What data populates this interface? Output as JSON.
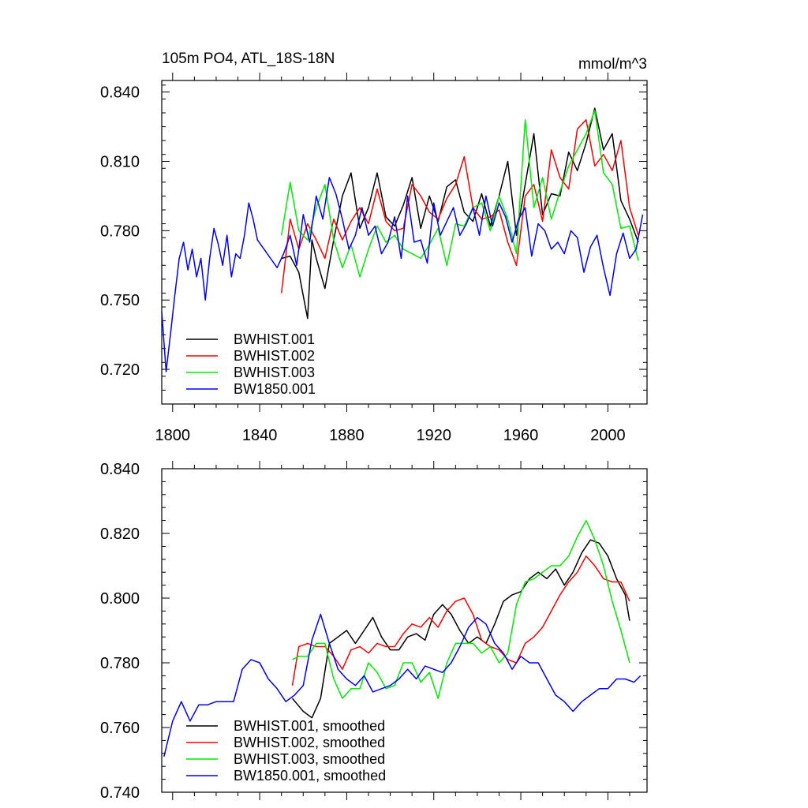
{
  "chart_data": [
    {
      "type": "line",
      "title": "105m PO4, ATL_18S-18N",
      "units": "mmol/m^3",
      "xlabel": "",
      "ylabel": "",
      "xlim": [
        1795,
        2018
      ],
      "ylim": [
        0.705,
        0.845
      ],
      "xticks": [
        1800,
        1840,
        1880,
        1920,
        1960,
        2000
      ],
      "xtick_labels": [
        "1800",
        "1840",
        "1880",
        "1920",
        "1960",
        "2000"
      ],
      "yticks": [
        0.72,
        0.75,
        0.78,
        0.81,
        0.84
      ],
      "ytick_labels": [
        "0.720",
        "0.750",
        "0.780",
        "0.810",
        "0.840"
      ],
      "legend_position": "bottom-left",
      "series": [
        {
          "name": "BWHIST.001",
          "color": "#000000",
          "x": [
            1850,
            1854,
            1858,
            1862,
            1864,
            1866,
            1870,
            1874,
            1878,
            1882,
            1886,
            1890,
            1894,
            1898,
            1902,
            1906,
            1910,
            1914,
            1918,
            1922,
            1926,
            1930,
            1934,
            1938,
            1942,
            1946,
            1950,
            1954,
            1958,
            1962,
            1966,
            1970,
            1974,
            1978,
            1982,
            1986,
            1990,
            1994,
            1998,
            2002,
            2006,
            2010,
            2014
          ],
          "values": [
            0.768,
            0.769,
            0.762,
            0.742,
            0.776,
            0.768,
            0.755,
            0.776,
            0.795,
            0.805,
            0.781,
            0.79,
            0.805,
            0.786,
            0.782,
            0.791,
            0.803,
            0.781,
            0.795,
            0.784,
            0.799,
            0.802,
            0.788,
            0.784,
            0.796,
            0.782,
            0.795,
            0.81,
            0.778,
            0.8,
            0.822,
            0.787,
            0.796,
            0.795,
            0.814,
            0.806,
            0.818,
            0.833,
            0.815,
            0.822,
            0.793,
            0.785,
            0.775
          ]
        },
        {
          "name": "BWHIST.002",
          "color": "#ff0000",
          "x": [
            1850,
            1854,
            1858,
            1862,
            1866,
            1870,
            1874,
            1878,
            1882,
            1886,
            1890,
            1894,
            1898,
            1902,
            1906,
            1910,
            1914,
            1918,
            1922,
            1926,
            1930,
            1934,
            1938,
            1942,
            1946,
            1950,
            1954,
            1958,
            1962,
            1966,
            1970,
            1974,
            1978,
            1982,
            1986,
            1990,
            1994,
            1998,
            2002,
            2006,
            2010,
            2014
          ],
          "values": [
            0.753,
            0.785,
            0.772,
            0.783,
            0.776,
            0.768,
            0.785,
            0.776,
            0.784,
            0.79,
            0.783,
            0.798,
            0.784,
            0.78,
            0.781,
            0.8,
            0.795,
            0.788,
            0.785,
            0.794,
            0.8,
            0.812,
            0.79,
            0.785,
            0.786,
            0.789,
            0.775,
            0.765,
            0.795,
            0.8,
            0.784,
            0.815,
            0.803,
            0.798,
            0.824,
            0.828,
            0.808,
            0.813,
            0.806,
            0.819,
            0.79,
            0.778
          ]
        },
        {
          "name": "BWHIST.003",
          "color": "#00ee00",
          "x": [
            1850,
            1854,
            1858,
            1862,
            1866,
            1870,
            1874,
            1878,
            1882,
            1886,
            1890,
            1894,
            1898,
            1902,
            1906,
            1910,
            1914,
            1918,
            1922,
            1926,
            1930,
            1934,
            1938,
            1942,
            1946,
            1950,
            1954,
            1958,
            1962,
            1966,
            1970,
            1974,
            1978,
            1982,
            1986,
            1990,
            1994,
            1998,
            2002,
            2006,
            2010,
            2014
          ],
          "values": [
            0.778,
            0.801,
            0.78,
            0.776,
            0.79,
            0.8,
            0.776,
            0.764,
            0.774,
            0.76,
            0.772,
            0.782,
            0.775,
            0.778,
            0.772,
            0.77,
            0.768,
            0.774,
            0.781,
            0.765,
            0.783,
            0.782,
            0.79,
            0.792,
            0.78,
            0.795,
            0.785,
            0.77,
            0.828,
            0.79,
            0.803,
            0.785,
            0.797,
            0.808,
            0.815,
            0.822,
            0.832,
            0.805,
            0.8,
            0.781,
            0.782,
            0.767
          ]
        },
        {
          "name": "BW1850.001",
          "color": "#0000ff",
          "x": [
            1795,
            1797,
            1799,
            1801,
            1803,
            1805,
            1807,
            1809,
            1811,
            1813,
            1815,
            1817,
            1819,
            1821,
            1823,
            1825,
            1827,
            1829,
            1831,
            1833,
            1835,
            1837,
            1839,
            1842,
            1845,
            1848,
            1851,
            1854,
            1857,
            1860,
            1863,
            1866,
            1869,
            1872,
            1875,
            1878,
            1881,
            1884,
            1887,
            1890,
            1893,
            1896,
            1899,
            1902,
            1905,
            1908,
            1911,
            1914,
            1917,
            1920,
            1923,
            1926,
            1929,
            1932,
            1935,
            1938,
            1941,
            1944,
            1947,
            1950,
            1953,
            1956,
            1959,
            1962,
            1965,
            1968,
            1971,
            1974,
            1977,
            1980,
            1983,
            1986,
            1989,
            1992,
            1995,
            1998,
            2001,
            2004,
            2007,
            2010,
            2013,
            2016
          ],
          "values": [
            0.745,
            0.719,
            0.735,
            0.752,
            0.768,
            0.775,
            0.763,
            0.772,
            0.76,
            0.768,
            0.75,
            0.768,
            0.781,
            0.774,
            0.765,
            0.778,
            0.76,
            0.77,
            0.768,
            0.778,
            0.792,
            0.785,
            0.776,
            0.772,
            0.768,
            0.764,
            0.77,
            0.778,
            0.765,
            0.787,
            0.775,
            0.795,
            0.785,
            0.803,
            0.796,
            0.785,
            0.772,
            0.778,
            0.79,
            0.778,
            0.782,
            0.77,
            0.775,
            0.786,
            0.768,
            0.795,
            0.775,
            0.776,
            0.766,
            0.792,
            0.778,
            0.784,
            0.79,
            0.778,
            0.783,
            0.79,
            0.778,
            0.795,
            0.782,
            0.792,
            0.786,
            0.775,
            0.785,
            0.79,
            0.769,
            0.783,
            0.78,
            0.772,
            0.775,
            0.77,
            0.78,
            0.777,
            0.762,
            0.773,
            0.778,
            0.764,
            0.752,
            0.77,
            0.779,
            0.768,
            0.772,
            0.787
          ]
        }
      ]
    },
    {
      "type": "line",
      "title": "",
      "xlabel": "",
      "ylabel": "",
      "xlim": [
        1795,
        2018
      ],
      "ylim": [
        0.74,
        0.84
      ],
      "xticks": [
        1800,
        1840,
        1880,
        1920,
        1960,
        2000
      ],
      "yticks": [
        0.74,
        0.76,
        0.78,
        0.8,
        0.82,
        0.84
      ],
      "ytick_labels": [
        "0.740",
        "0.760",
        "0.780",
        "0.800",
        "0.820",
        "0.840"
      ],
      "legend_position": "bottom-left",
      "series": [
        {
          "name": "BWHIST.001, smoothed",
          "color": "#000000",
          "x": [
            1855,
            1860,
            1864,
            1868,
            1872,
            1876,
            1880,
            1884,
            1888,
            1892,
            1896,
            1900,
            1904,
            1908,
            1912,
            1916,
            1920,
            1924,
            1928,
            1932,
            1936,
            1940,
            1944,
            1948,
            1952,
            1956,
            1960,
            1964,
            1968,
            1972,
            1976,
            1980,
            1984,
            1988,
            1992,
            1996,
            2000,
            2004,
            2008,
            2010
          ],
          "values": [
            0.769,
            0.765,
            0.763,
            0.769,
            0.786,
            0.788,
            0.79,
            0.786,
            0.79,
            0.794,
            0.788,
            0.784,
            0.784,
            0.788,
            0.789,
            0.787,
            0.795,
            0.798,
            0.795,
            0.79,
            0.786,
            0.788,
            0.786,
            0.792,
            0.799,
            0.801,
            0.802,
            0.806,
            0.808,
            0.806,
            0.809,
            0.804,
            0.808,
            0.814,
            0.818,
            0.817,
            0.813,
            0.806,
            0.801,
            0.793
          ]
        },
        {
          "name": "BWHIST.002, smoothed",
          "color": "#ff0000",
          "x": [
            1855,
            1858,
            1862,
            1866,
            1870,
            1874,
            1878,
            1882,
            1886,
            1890,
            1894,
            1898,
            1902,
            1906,
            1910,
            1914,
            1918,
            1922,
            1926,
            1930,
            1934,
            1938,
            1942,
            1946,
            1950,
            1954,
            1958,
            1962,
            1966,
            1970,
            1974,
            1978,
            1982,
            1986,
            1990,
            1994,
            1998,
            2002,
            2006,
            2010
          ],
          "values": [
            0.773,
            0.785,
            0.786,
            0.785,
            0.785,
            0.782,
            0.778,
            0.784,
            0.785,
            0.783,
            0.786,
            0.785,
            0.785,
            0.789,
            0.792,
            0.791,
            0.794,
            0.791,
            0.796,
            0.799,
            0.8,
            0.795,
            0.787,
            0.785,
            0.784,
            0.781,
            0.78,
            0.786,
            0.788,
            0.791,
            0.796,
            0.801,
            0.805,
            0.808,
            0.813,
            0.81,
            0.806,
            0.805,
            0.805,
            0.799
          ]
        },
        {
          "name": "BWHIST.003, smoothed",
          "color": "#00ee00",
          "x": [
            1855,
            1858,
            1862,
            1866,
            1870,
            1874,
            1878,
            1882,
            1886,
            1890,
            1894,
            1898,
            1902,
            1906,
            1910,
            1914,
            1918,
            1922,
            1926,
            1930,
            1934,
            1938,
            1942,
            1946,
            1950,
            1954,
            1958,
            1962,
            1966,
            1970,
            1974,
            1978,
            1982,
            1986,
            1990,
            1994,
            1998,
            2002,
            2006,
            2010
          ],
          "values": [
            0.781,
            0.782,
            0.782,
            0.786,
            0.786,
            0.775,
            0.769,
            0.772,
            0.772,
            0.78,
            0.777,
            0.772,
            0.773,
            0.78,
            0.78,
            0.774,
            0.777,
            0.769,
            0.78,
            0.786,
            0.786,
            0.786,
            0.783,
            0.785,
            0.78,
            0.783,
            0.798,
            0.805,
            0.806,
            0.808,
            0.81,
            0.81,
            0.813,
            0.819,
            0.824,
            0.818,
            0.81,
            0.799,
            0.79,
            0.78
          ]
        },
        {
          "name": "BW1850.001, smoothed",
          "color": "#0000ff",
          "x": [
            1796,
            1800,
            1804,
            1808,
            1812,
            1816,
            1820,
            1824,
            1828,
            1832,
            1836,
            1840,
            1844,
            1848,
            1852,
            1856,
            1860,
            1864,
            1868,
            1872,
            1876,
            1880,
            1884,
            1888,
            1892,
            1896,
            1900,
            1904,
            1908,
            1912,
            1916,
            1920,
            1924,
            1928,
            1932,
            1936,
            1940,
            1944,
            1948,
            1952,
            1956,
            1960,
            1964,
            1968,
            1972,
            1976,
            1980,
            1984,
            1988,
            1992,
            1996,
            2000,
            2004,
            2008,
            2012,
            2015
          ],
          "values": [
            0.751,
            0.762,
            0.768,
            0.762,
            0.767,
            0.767,
            0.768,
            0.768,
            0.768,
            0.778,
            0.781,
            0.78,
            0.775,
            0.772,
            0.768,
            0.77,
            0.773,
            0.787,
            0.795,
            0.786,
            0.778,
            0.775,
            0.773,
            0.776,
            0.771,
            0.772,
            0.773,
            0.775,
            0.778,
            0.775,
            0.779,
            0.778,
            0.777,
            0.78,
            0.785,
            0.791,
            0.794,
            0.792,
            0.786,
            0.783,
            0.778,
            0.782,
            0.78,
            0.78,
            0.775,
            0.77,
            0.768,
            0.765,
            0.768,
            0.77,
            0.772,
            0.772,
            0.775,
            0.775,
            0.774,
            0.776
          ]
        }
      ]
    }
  ]
}
